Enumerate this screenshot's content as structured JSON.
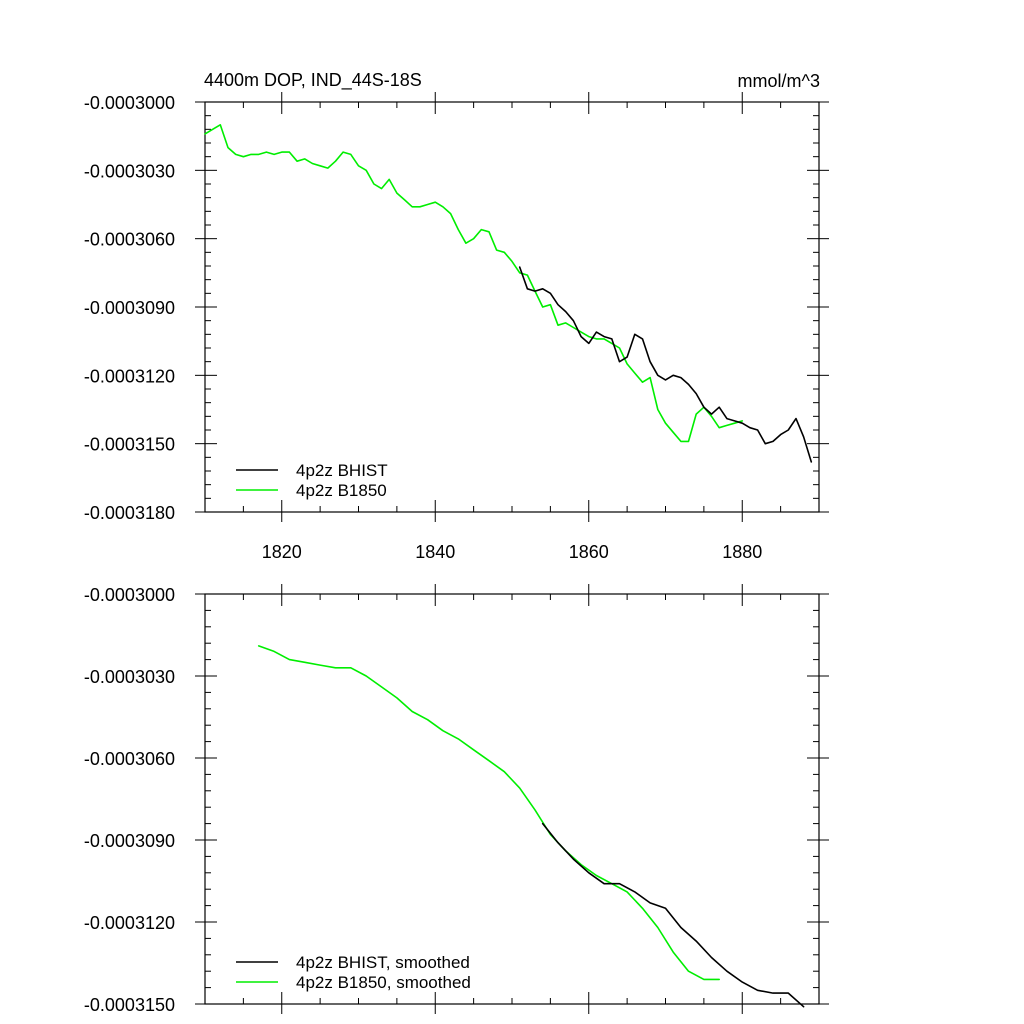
{
  "chart_data": [
    {
      "type": "line",
      "title": "4400m DOP, IND_44S-18S",
      "units": "mmol/m^3",
      "xlim": [
        1810,
        1890
      ],
      "ylim": [
        -0.000318,
        -0.0003
      ],
      "x_ticks": [
        1820,
        1840,
        1860,
        1880
      ],
      "x_tick_labels": [
        "1820",
        "1840",
        "1860",
        "1880"
      ],
      "y_ticks": [
        -0.0003,
        -0.000303,
        -0.000306,
        -0.000309,
        -0.000312,
        -0.000315,
        -0.000318
      ],
      "y_tick_labels": [
        "-0.0003000",
        "-0.0003030",
        "-0.0003060",
        "-0.0003090",
        "-0.0003120",
        "-0.0003150",
        "-0.0003180"
      ],
      "legend_position": "bottom-left",
      "series": [
        {
          "name": "4p2z BHIST",
          "color": "#000000",
          "x": [
            1851,
            1852,
            1853,
            1854,
            1855,
            1856,
            1857,
            1858,
            1859,
            1860,
            1861,
            1862,
            1863,
            1864,
            1865,
            1866,
            1867,
            1868,
            1869,
            1870,
            1871,
            1872,
            1873,
            1874,
            1875,
            1876,
            1877,
            1878,
            1879,
            1880,
            1881,
            1882,
            1883,
            1884,
            1885,
            1886,
            1887,
            1888,
            1889
          ],
          "y": [
            -0.00030725,
            -0.0003082,
            -0.0003083,
            -0.0003082,
            -0.0003084,
            -0.0003089,
            -0.0003092,
            -0.0003096,
            -0.0003103,
            -0.0003106,
            -0.0003101,
            -0.0003103,
            -0.0003104,
            -0.0003114,
            -0.0003112,
            -0.0003102,
            -0.0003104,
            -0.0003114,
            -0.000312,
            -0.0003122,
            -0.000312,
            -0.0003121,
            -0.0003124,
            -0.0003128,
            -0.0003134,
            -0.0003137,
            -0.0003134,
            -0.0003139,
            -0.000314,
            -0.0003141,
            -0.0003143,
            -0.0003144,
            -0.000315,
            -0.0003149,
            -0.0003146,
            -0.0003144,
            -0.0003139,
            -0.0003147,
            -0.0003158
          ]
        },
        {
          "name": "4p2z B1850",
          "color": "#00ee00",
          "x": [
            1810,
            1811,
            1812,
            1813,
            1814,
            1815,
            1816,
            1817,
            1818,
            1819,
            1820,
            1821,
            1822,
            1823,
            1824,
            1825,
            1826,
            1827,
            1828,
            1829,
            1830,
            1831,
            1832,
            1833,
            1834,
            1835,
            1836,
            1837,
            1838,
            1839,
            1840,
            1841,
            1842,
            1843,
            1844,
            1845,
            1846,
            1847,
            1848,
            1849,
            1850,
            1851,
            1852,
            1853,
            1854,
            1855,
            1856,
            1857,
            1858,
            1859,
            1860,
            1861,
            1862,
            1863,
            1864,
            1865,
            1866,
            1867,
            1868,
            1869,
            1870,
            1871,
            1872,
            1873,
            1874,
            1875,
            1876,
            1877,
            1878,
            1879,
            1880
          ],
          "y": [
            -0.0003014,
            -0.0003012,
            -0.000301,
            -0.000302,
            -0.0003023,
            -0.0003024,
            -0.0003023,
            -0.0003023,
            -0.0003022,
            -0.0003023,
            -0.0003022,
            -0.0003022,
            -0.0003026,
            -0.0003025,
            -0.0003027,
            -0.0003028,
            -0.0003029,
            -0.0003026,
            -0.0003022,
            -0.0003023,
            -0.0003028,
            -0.000303,
            -0.0003036,
            -0.0003038,
            -0.0003034,
            -0.000304,
            -0.0003043,
            -0.0003046,
            -0.0003046,
            -0.0003045,
            -0.0003044,
            -0.0003046,
            -0.0003049,
            -0.0003056,
            -0.0003062,
            -0.000306,
            -0.0003056,
            -0.0003057,
            -0.0003065,
            -0.0003066,
            -0.000307,
            -0.0003075,
            -0.0003076,
            -0.0003083,
            -0.000309,
            -0.0003089,
            -0.0003098,
            -0.0003097,
            -0.0003099,
            -0.0003101,
            -0.0003103,
            -0.0003104,
            -0.0003104,
            -0.0003106,
            -0.0003108,
            -0.0003115,
            -0.0003119,
            -0.0003123,
            -0.0003121,
            -0.0003135,
            -0.0003141,
            -0.0003145,
            -0.0003149,
            -0.0003149,
            -0.0003137,
            -0.0003134,
            -0.0003138,
            -0.0003143,
            -0.0003142,
            -0.0003141,
            -0.000314
          ]
        }
      ]
    },
    {
      "type": "line",
      "xlim": [
        1810,
        1890
      ],
      "ylim": [
        -0.000315,
        -0.0003
      ],
      "x_ticks": [
        1820,
        1840,
        1860,
        1880
      ],
      "y_ticks": [
        -0.0003,
        -0.000303,
        -0.000306,
        -0.000309,
        -0.000312,
        -0.000315
      ],
      "y_tick_labels": [
        "-0.0003000",
        "-0.0003030",
        "-0.0003060",
        "-0.0003090",
        "-0.0003120",
        "-0.0003150"
      ],
      "legend_position": "bottom-left",
      "series": [
        {
          "name": "4p2z BHIST, smoothed",
          "color": "#000000",
          "x": [
            1854,
            1856,
            1858,
            1860,
            1862,
            1864,
            1866,
            1868,
            1870,
            1872,
            1874,
            1876,
            1878,
            1880,
            1882,
            1884,
            1886,
            1888
          ],
          "y": [
            -0.0003084,
            -0.0003091,
            -0.0003097,
            -0.0003102,
            -0.0003106,
            -0.0003106,
            -0.0003109,
            -0.0003113,
            -0.0003115,
            -0.0003122,
            -0.0003127,
            -0.0003133,
            -0.0003138,
            -0.0003142,
            -0.0003145,
            -0.0003146,
            -0.0003146,
            -0.0003151
          ]
        },
        {
          "name": "4p2z B1850, smoothed",
          "color": "#00ee00",
          "x": [
            1817,
            1819,
            1821,
            1823,
            1825,
            1827,
            1829,
            1831,
            1833,
            1835,
            1837,
            1839,
            1841,
            1843,
            1845,
            1847,
            1849,
            1851,
            1853,
            1855,
            1857,
            1859,
            1861,
            1863,
            1865,
            1867,
            1869,
            1871,
            1873,
            1875,
            1877
          ],
          "y": [
            -0.0003019,
            -0.0003021,
            -0.0003024,
            -0.0003025,
            -0.0003026,
            -0.0003027,
            -0.0003027,
            -0.000303,
            -0.0003034,
            -0.0003038,
            -0.0003043,
            -0.0003046,
            -0.000305,
            -0.0003053,
            -0.0003057,
            -0.0003061,
            -0.0003065,
            -0.0003071,
            -0.0003079,
            -0.0003088,
            -0.0003094,
            -0.0003099,
            -0.0003103,
            -0.0003106,
            -0.0003109,
            -0.0003115,
            -0.0003122,
            -0.0003131,
            -0.0003138,
            -0.0003141,
            -0.0003141
          ]
        }
      ]
    }
  ]
}
